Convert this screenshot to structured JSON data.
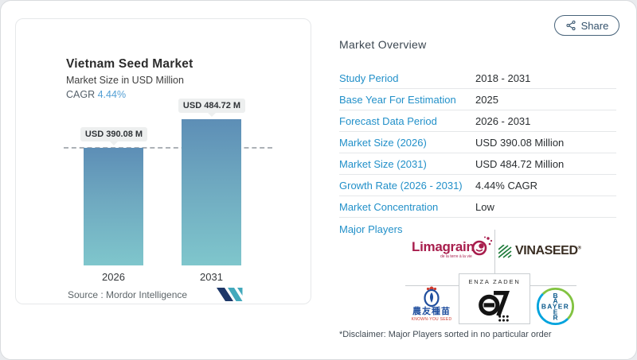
{
  "window": {
    "share_label": "Share"
  },
  "chart_card": {
    "title": "Vietnam Seed Market",
    "subtitle": "Market Size in USD Million",
    "cagr_label": "CAGR",
    "cagr_value": "4.44%",
    "bar_labels": [
      "USD 390.08 M",
      "USD 484.72 M"
    ],
    "source_label": "Source :  Mordor Intelligence"
  },
  "chart_data": {
    "type": "bar",
    "title": "Vietnam Seed Market",
    "subtitle": "Market Size in USD Million",
    "unit": "USD Million",
    "categories": [
      "2026",
      "2031"
    ],
    "values": [
      390.08,
      484.72
    ],
    "cagr": "4.44%",
    "reference_line_value": 390.08,
    "bar_color_top": "#5d8eb6",
    "bar_color_bottom": "#7fc6cc",
    "grid": false,
    "legend": false
  },
  "overview": {
    "heading": "Market Overview",
    "rows": [
      {
        "label": "Study Period",
        "value": "2018 - 2031"
      },
      {
        "label": "Base Year For Estimation",
        "value": "2025"
      },
      {
        "label": "Forecast Data Period",
        "value": "2026 - 2031"
      },
      {
        "label": "Market Size (2026)",
        "value": "USD 390.08 Million"
      },
      {
        "label": "Market Size (2031)",
        "value": "USD 484.72 Million"
      },
      {
        "label": "Growth Rate (2026 - 2031)",
        "value": "4.44% CAGR"
      },
      {
        "label": "Market Concentration",
        "value": "Low"
      }
    ],
    "major_players_label": "Major Players",
    "disclaimer": "*Disclaimer: Major Players sorted in no particular order"
  },
  "players": {
    "limagrain": {
      "name": "Limagrain",
      "tagline": "de la terre à la vie"
    },
    "vinaseed": {
      "name": "VINASEED",
      "reg": "®"
    },
    "enza": {
      "name": "ENZA ZADEN"
    },
    "known_you": {
      "cjk": "農友種苗",
      "sub": "KNOWN-YOU SEED"
    },
    "bayer": {
      "name": "BAYER"
    }
  },
  "colors": {
    "accent_blue": "#2290c9",
    "cagr_blue": "#539fd4",
    "bar_top": "#5d8eb6",
    "bar_bottom": "#7fc6cc",
    "limagrain_red": "#a81e4d",
    "vinaseed_green": "#1e7c3b",
    "bayer_green": "#82c341",
    "bayer_blue": "#00a3dd",
    "knownyou_blue": "#1f4e9e"
  }
}
